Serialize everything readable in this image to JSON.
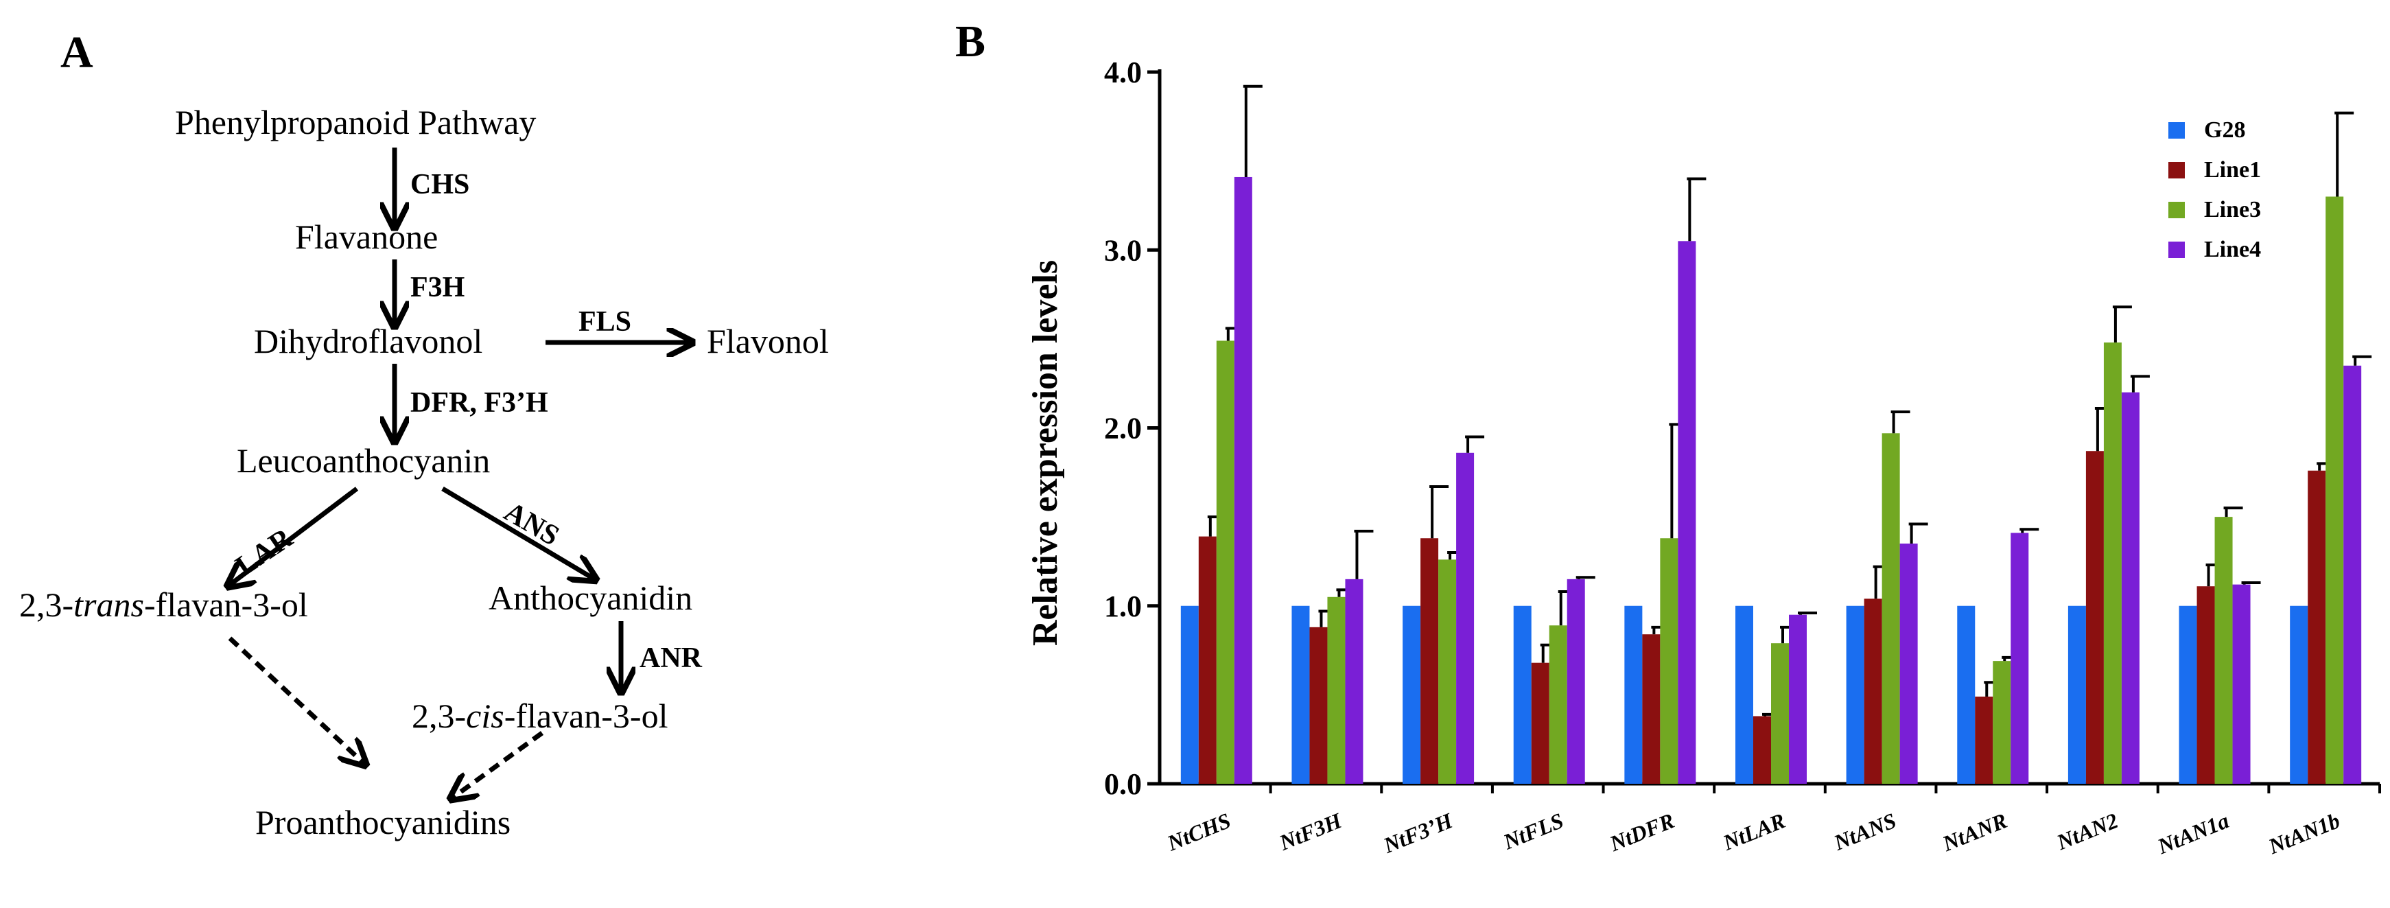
{
  "panel_a": {
    "label": "A",
    "nodes": {
      "phenylpropanoid": "Phenylpropanoid  Pathway",
      "flavanone": "Flavanone",
      "dihydroflavonol": "Dihydroflavonol",
      "flavonol": "Flavonol",
      "leucoanthocyanin": "Leucoanthocyanin",
      "trans_pre": "2,3-",
      "trans_it": "trans",
      "trans_post": "-flavan-3-ol",
      "anthocyanidin": "Anthocyanidin",
      "cis_pre": "2,3-",
      "cis_it": "cis",
      "cis_post": "-flavan-3-ol",
      "proanthocyanidins": "Proanthocyanidins"
    },
    "enzymes": {
      "chs": "CHS",
      "f3h": "F3H",
      "fls": "FLS",
      "dfr": "DFR, F3’H",
      "lar": "LAR",
      "ans": "ANS",
      "anr": "ANR"
    }
  },
  "chart_data": {
    "type": "bar",
    "panel_label": "B",
    "title": "",
    "xlabel": "",
    "ylabel": "Relative expression levels",
    "ylim": [
      0,
      4
    ],
    "yticks": [
      "0.0",
      "1.0",
      "2.0",
      "3.0",
      "4.0"
    ],
    "ytick_values": [
      0,
      1,
      2,
      3,
      4
    ],
    "legend_position": "top-right",
    "categories": [
      "NtCHS",
      "NtF3H",
      "NtF3’H",
      "NtFLS",
      "NtDFR",
      "NtLAR",
      "NtANS",
      "NtANR",
      "NtAN2",
      "NtAN1a",
      "NtAN1b"
    ],
    "series": [
      {
        "name": "G28",
        "color": "#1a6ef0",
        "values": [
          1.0,
          1.0,
          1.0,
          1.0,
          1.0,
          1.0,
          1.0,
          1.0,
          1.0,
          1.0,
          1.0
        ],
        "errors": [
          0,
          0,
          0,
          0,
          0,
          0,
          0,
          0,
          0,
          0,
          0
        ]
      },
      {
        "name": "Line1",
        "color": "#8b1010",
        "values": [
          1.39,
          0.88,
          1.38,
          0.68,
          0.84,
          0.38,
          1.04,
          0.49,
          1.87,
          1.11,
          1.76
        ],
        "errors": [
          0.11,
          0.09,
          0.29,
          0.1,
          0.04,
          0.01,
          0.18,
          0.08,
          0.24,
          0.12,
          0.04
        ]
      },
      {
        "name": "Line3",
        "color": "#72a822",
        "values": [
          2.49,
          1.05,
          1.26,
          0.89,
          1.38,
          0.79,
          1.97,
          0.69,
          2.48,
          1.5,
          3.3
        ],
        "errors": [
          0.07,
          0.04,
          0.04,
          0.19,
          0.64,
          0.09,
          0.12,
          0.02,
          0.2,
          0.05,
          0.47
        ]
      },
      {
        "name": "Line4",
        "color": "#7a1fd6",
        "values": [
          3.41,
          1.15,
          1.86,
          1.15,
          3.05,
          0.95,
          1.35,
          1.41,
          2.2,
          1.12,
          2.35
        ],
        "errors": [
          0.51,
          0.27,
          0.09,
          0.01,
          0.35,
          0.01,
          0.11,
          0.02,
          0.09,
          0.01,
          0.05
        ]
      }
    ]
  }
}
